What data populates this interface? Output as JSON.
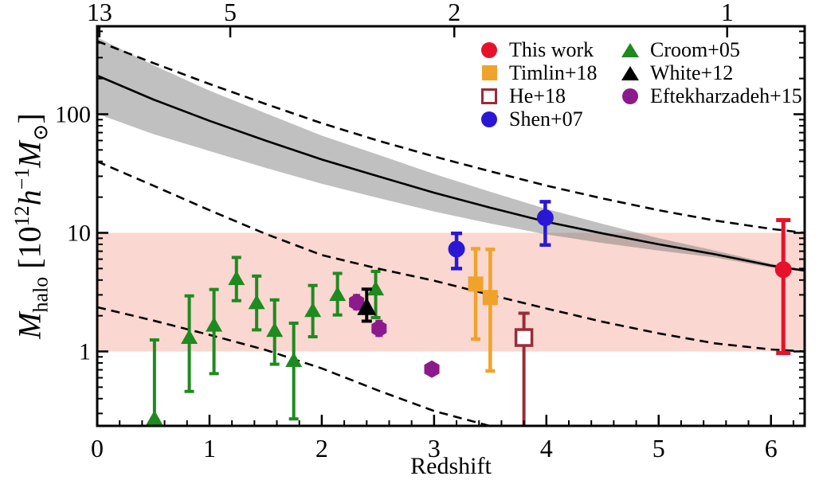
{
  "figure": {
    "y_axis_label_html": "<i>M</i><sub>halo</sub> [10<sup>12</sup><i>h</i><sup>−1</sup><i>M</i><sub>⊙</sub>]",
    "x_axis_label_partial": "Redshift",
    "background": "#ffffff"
  },
  "colors": {
    "this_work": "#e8112b",
    "timlin": "#f0a32a",
    "he": "#9a2b38",
    "shen": "#2a17d6",
    "croom": "#1f8a1f",
    "white": "#000000",
    "eftekharzadeh": "#8c1a8c",
    "pink_band": "#fad7d0",
    "gray_band": "rgba(115,115,115,0.45)",
    "line": "#000000"
  },
  "legend": {
    "columns": [
      {
        "items": [
          {
            "label": "This work",
            "marker": "circle",
            "color_key": "this_work"
          },
          {
            "label": "Timlin+18",
            "marker": "square",
            "color_key": "timlin"
          },
          {
            "label": "He+18",
            "marker": "open-square",
            "color_key": "he"
          },
          {
            "label": "Shen+07",
            "marker": "circle",
            "color_key": "shen"
          }
        ]
      },
      {
        "items": [
          {
            "label": "Croom+05",
            "marker": "triangle",
            "color_key": "croom"
          },
          {
            "label": "White+12",
            "marker": "triangle",
            "color_key": "white"
          },
          {
            "label": "Eftekharzadeh+15",
            "marker": "hexagon",
            "color_key": "eftekharzadeh"
          }
        ]
      }
    ]
  },
  "chart_data": {
    "type": "scatter",
    "title": "",
    "xlabel": "Redshift",
    "ylabel": "M_halo [10^12 h^-1 M_sun]",
    "yscale": "log",
    "xlim": [
      0,
      6.3
    ],
    "ylim": [
      0.235,
      555
    ],
    "x_ticks": {
      "major": [
        0,
        1,
        2,
        3,
        4,
        5,
        6
      ],
      "minor_step": 0.2
    },
    "y_ticks": {
      "major_labels": [
        "1",
        "10",
        "100"
      ],
      "major_values": [
        1,
        10,
        100
      ]
    },
    "top_axis": {
      "meaning": "age ticks (Gyr)",
      "ticks": [
        {
          "label": "13",
          "z": 0.02
        },
        {
          "label": "5",
          "z": 1.185
        },
        {
          "label": "2",
          "z": 3.18
        },
        {
          "label": "1",
          "z": 5.61
        }
      ]
    },
    "pink_band": {
      "ymin": 1,
      "ymax": 10
    },
    "model_curves": {
      "solid": [
        [
          0,
          212
        ],
        [
          0.5,
          133
        ],
        [
          1,
          88
        ],
        [
          1.5,
          60
        ],
        [
          2,
          41.5
        ],
        [
          2.5,
          30
        ],
        [
          3,
          21.8
        ],
        [
          3.5,
          16.3
        ],
        [
          4,
          12.4
        ],
        [
          4.5,
          9.9
        ],
        [
          5,
          8.0
        ],
        [
          5.5,
          6.6
        ],
        [
          6,
          5.3
        ],
        [
          6.3,
          4.8
        ]
      ],
      "band_upper": [
        [
          0,
          445
        ],
        [
          0.5,
          259
        ],
        [
          1,
          158
        ],
        [
          1.5,
          102
        ],
        [
          2,
          66
        ],
        [
          2.5,
          45.6
        ],
        [
          3,
          31.4
        ],
        [
          3.5,
          22.2
        ],
        [
          4,
          15.9
        ],
        [
          4.5,
          11.9
        ],
        [
          5,
          9.0
        ],
        [
          5.5,
          7.1
        ],
        [
          6,
          5.5
        ],
        [
          6.3,
          4.9
        ]
      ],
      "band_lower": [
        [
          0,
          101
        ],
        [
          0.5,
          68
        ],
        [
          1,
          49
        ],
        [
          1.5,
          35.3
        ],
        [
          2,
          25.9
        ],
        [
          2.5,
          19.7
        ],
        [
          3,
          15.1
        ],
        [
          3.5,
          12.0
        ],
        [
          4,
          9.7
        ],
        [
          4.5,
          8.2
        ],
        [
          5,
          7.1
        ],
        [
          5.5,
          6.2
        ],
        [
          6,
          5.1
        ],
        [
          6.3,
          4.7
        ]
      ],
      "dashed_upper": [
        [
          0,
          413
        ],
        [
          0.5,
          270
        ],
        [
          1,
          180
        ],
        [
          1.5,
          122
        ],
        [
          2,
          84
        ],
        [
          2.5,
          60
        ],
        [
          3,
          44
        ],
        [
          3.5,
          33
        ],
        [
          4,
          25
        ],
        [
          4.5,
          19.5
        ],
        [
          5,
          15.5
        ],
        [
          5.5,
          12.7
        ],
        [
          6,
          10.8
        ],
        [
          6.3,
          10
        ]
      ],
      "dashed_middle": [
        [
          0,
          40
        ],
        [
          0.5,
          25
        ],
        [
          1,
          15.5
        ],
        [
          1.5,
          9.8
        ],
        [
          2,
          6.5
        ],
        [
          2.5,
          5.0
        ],
        [
          3,
          3.95
        ],
        [
          3.5,
          3.0
        ],
        [
          4,
          2.3
        ],
        [
          4.5,
          1.78
        ],
        [
          5,
          1.42
        ],
        [
          5.5,
          1.17
        ],
        [
          6,
          1.04
        ],
        [
          6.3,
          1.0
        ]
      ],
      "dashed_lower": [
        [
          0,
          2.36
        ],
        [
          0.5,
          1.82
        ],
        [
          1,
          1.38
        ],
        [
          1.5,
          1.03
        ],
        [
          2,
          0.72
        ],
        [
          2.5,
          0.47
        ],
        [
          3,
          0.315
        ],
        [
          3.5,
          0.235
        ],
        [
          3.8,
          0.19
        ]
      ]
    },
    "series": [
      {
        "name": "Croom+05",
        "marker": "triangle",
        "color_key": "croom",
        "points": [
          [
            0.51,
            0.27,
            0.27,
            1.25
          ],
          [
            0.82,
            1.3,
            0.46,
            2.94
          ],
          [
            1.04,
            1.65,
            0.65,
            3.33
          ],
          [
            1.24,
            4.07,
            2.68,
            6.2
          ],
          [
            1.42,
            2.55,
            1.52,
            4.32
          ],
          [
            1.58,
            1.49,
            0.78,
            2.72
          ],
          [
            1.75,
            0.83,
            0.27,
            1.73
          ],
          [
            1.92,
            2.19,
            1.33,
            3.6
          ],
          [
            2.14,
            2.99,
            2.03,
            4.55
          ],
          [
            2.48,
            3.33,
            1.93,
            4.73
          ]
        ]
      },
      {
        "name": "Eftekharzadeh+15",
        "marker": "hexagon",
        "color_key": "eftekharzadeh",
        "points": [
          [
            2.31,
            2.6,
            2.28,
            2.97
          ],
          [
            2.51,
            1.56,
            1.36,
            1.8
          ],
          [
            2.98,
            0.71,
            0.655,
            0.77
          ]
        ]
      },
      {
        "name": "White+12",
        "marker": "triangle",
        "color_key": "white",
        "points": [
          [
            2.4,
            2.33,
            1.8,
            3.35
          ]
        ]
      },
      {
        "name": "Timlin+18",
        "marker": "square",
        "color_key": "timlin",
        "points": [
          [
            3.37,
            3.7,
            1.27,
            7.34
          ],
          [
            3.5,
            2.85,
            0.685,
            7.25
          ]
        ]
      },
      {
        "name": "He+18",
        "marker": "open-square",
        "color_key": "he",
        "lower_cap": false,
        "points": [
          [
            3.8,
            1.31,
            0.2,
            2.1
          ]
        ]
      },
      {
        "name": "Shen+07",
        "marker": "circle",
        "color_key": "shen",
        "points": [
          [
            3.2,
            7.3,
            5.0,
            9.9
          ],
          [
            3.99,
            13.4,
            7.9,
            18.3
          ]
        ]
      },
      {
        "name": "This work",
        "marker": "circle",
        "color_key": "this_work",
        "points": [
          [
            6.11,
            4.9,
            0.97,
            12.8
          ]
        ]
      }
    ]
  }
}
